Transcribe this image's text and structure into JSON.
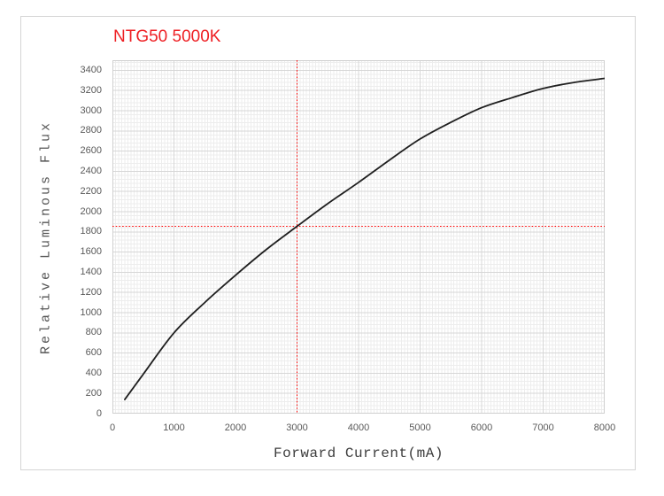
{
  "chart_data": {
    "type": "line",
    "title": "NTG50 5000K",
    "xlabel": "Forward Current(mA)",
    "ylabel": "Relative Luminous Flux",
    "xlim": [
      0,
      8000
    ],
    "ylim": [
      0,
      3500
    ],
    "x_ticks": [
      0,
      1000,
      2000,
      3000,
      4000,
      5000,
      6000,
      7000,
      8000
    ],
    "y_ticks": [
      0,
      200,
      400,
      600,
      800,
      1000,
      1200,
      1400,
      1600,
      1800,
      2000,
      2200,
      2400,
      2600,
      2800,
      3000,
      3200,
      3400
    ],
    "x_minor_step": 50,
    "y_minor_step": 40,
    "grid": "major+minor",
    "legend": "none",
    "series": [
      {
        "name": "relative-luminous-flux-curve",
        "points": [
          [
            200,
            140
          ],
          [
            500,
            390
          ],
          [
            1000,
            800
          ],
          [
            1500,
            1100
          ],
          [
            2000,
            1370
          ],
          [
            2500,
            1625
          ],
          [
            3000,
            1855
          ],
          [
            3500,
            2080
          ],
          [
            4000,
            2290
          ],
          [
            4500,
            2510
          ],
          [
            5000,
            2720
          ],
          [
            5500,
            2885
          ],
          [
            6000,
            3030
          ],
          [
            6500,
            3130
          ],
          [
            7000,
            3220
          ],
          [
            7500,
            3280
          ],
          [
            8000,
            3320
          ]
        ]
      }
    ],
    "crosshair": {
      "x": 3000,
      "y": 1855,
      "style": "dotted"
    },
    "colors": {
      "title": "#ee2024",
      "curve": "#1f1f1f",
      "crosshair": "#ff0000",
      "major_grid": "#d7d7d7",
      "minor_grid": "#ededed",
      "plot_border": "#cfcfcf",
      "tick_text": "#595959",
      "y_axis_title_text": "#555555",
      "x_axis_title_text": "#3c3c3c",
      "frame_border": "#d4d4d4"
    }
  }
}
